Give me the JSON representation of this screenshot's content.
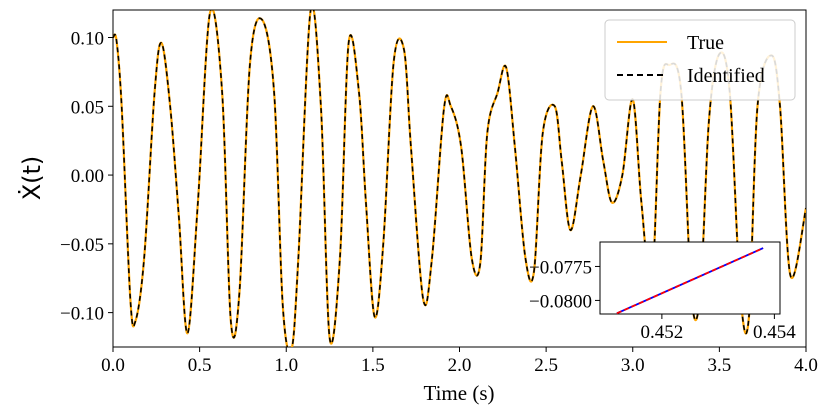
{
  "chart_data": {
    "type": "line",
    "xlabel": "Time (s)",
    "ylabel": "Ẋ(t)",
    "xlim": [
      0.0,
      4.0
    ],
    "ylim": [
      -0.125,
      0.12
    ],
    "x_ticks": [
      "0.0",
      "0.5",
      "1.0",
      "1.5",
      "2.0",
      "2.5",
      "3.0",
      "3.5",
      "4.0"
    ],
    "y_ticks": [
      "0.10",
      "0.05",
      "0.00",
      "−0.05",
      "−0.10"
    ],
    "legend": {
      "placement": "top-right"
    },
    "series": [
      {
        "name": "True",
        "color": "#FFA500",
        "style": "solid",
        "x": [
          0.0,
          0.02,
          0.05,
          0.1,
          0.13,
          0.18,
          0.24,
          0.28,
          0.33,
          0.38,
          0.43,
          0.49,
          0.56,
          0.63,
          0.68,
          0.73,
          0.79,
          0.86,
          0.93,
          0.98,
          1.03,
          1.07,
          1.14,
          1.2,
          1.25,
          1.31,
          1.36,
          1.42,
          1.46,
          1.51,
          1.56,
          1.62,
          1.68,
          1.72,
          1.79,
          1.84,
          1.91,
          1.95,
          2.01,
          2.07,
          2.12,
          2.16,
          2.22,
          2.27,
          2.32,
          2.38,
          2.43,
          2.48,
          2.55,
          2.59,
          2.64,
          2.7,
          2.77,
          2.83,
          2.88,
          2.94,
          3.0,
          3.05,
          3.11,
          3.16,
          3.21,
          3.28,
          3.34,
          3.39,
          3.44,
          3.5,
          3.56,
          3.62,
          3.67,
          3.72,
          3.8,
          3.85,
          3.91,
          4.0
        ],
        "y": [
          0.1,
          0.098,
          0.05,
          -0.09,
          -0.106,
          -0.06,
          0.06,
          0.096,
          0.05,
          -0.03,
          -0.115,
          -0.02,
          0.118,
          0.06,
          -0.106,
          -0.085,
          0.08,
          0.113,
          0.06,
          -0.095,
          -0.127,
          -0.06,
          0.119,
          0.05,
          -0.118,
          -0.06,
          0.096,
          0.06,
          -0.02,
          -0.103,
          -0.05,
          0.082,
          0.091,
          0.02,
          -0.09,
          -0.062,
          0.048,
          0.05,
          0.02,
          -0.06,
          -0.064,
          0.03,
          0.06,
          0.078,
          0.02,
          -0.06,
          -0.07,
          0.03,
          0.05,
          0.01,
          -0.04,
          0.0,
          0.05,
          0.01,
          -0.02,
          0.0,
          0.055,
          -0.02,
          -0.08,
          0.06,
          0.08,
          0.06,
          -0.09,
          -0.086,
          0.04,
          0.088,
          0.06,
          -0.085,
          -0.104,
          0.05,
          0.087,
          0.05,
          -0.073,
          -0.024
        ]
      },
      {
        "name": "Identified",
        "color": "#000000",
        "style": "dashed",
        "same_as": "True"
      }
    ],
    "inset": {
      "xlim": [
        0.4509,
        0.4541
      ],
      "ylim": [
        -0.081,
        -0.0757
      ],
      "x_ticks": [
        "0.452",
        "0.454"
      ],
      "y_ticks": [
        "−0.0775",
        "−0.0800"
      ],
      "series": [
        {
          "color": "#0000FF",
          "style": "solid",
          "x": [
            0.4512,
            0.4538
          ],
          "y": [
            -0.08095,
            -0.07615
          ]
        },
        {
          "color": "#FF0000",
          "style": "dashed",
          "x": [
            0.4512,
            0.4538
          ],
          "y": [
            -0.08095,
            -0.07615
          ]
        }
      ]
    }
  }
}
